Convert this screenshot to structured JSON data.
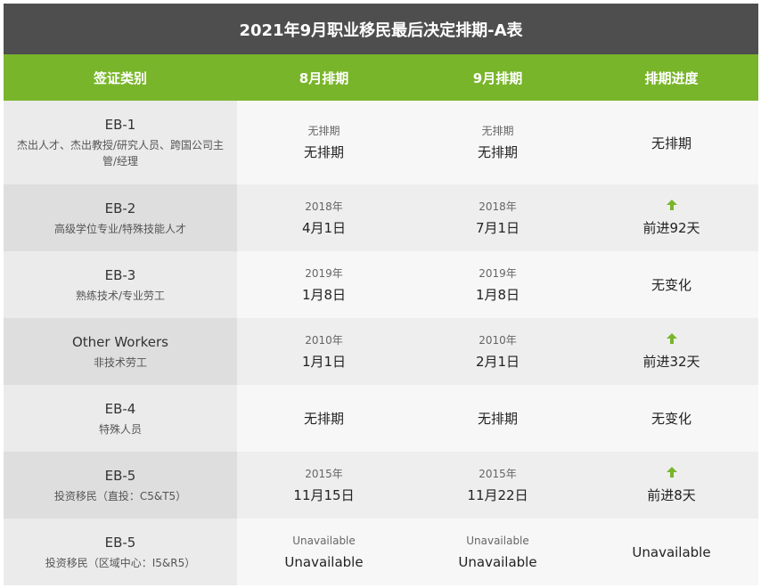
{
  "title": "2021年9月职业移民最后决定排期-A表",
  "headers": [
    "签证类别",
    "8月排期",
    "9月排期",
    "排期进度"
  ],
  "colors": {
    "title_bg": "#4e4e4e",
    "header_bg": "#79b52a",
    "arrow": "#79b52a"
  },
  "rows": [
    {
      "code": "EB-1",
      "desc": "杰出人才、杰出教授/研究人员、跨国公司主管/经理",
      "aug_small": "无排期",
      "aug_big": "无排期",
      "sep_small": "无排期",
      "sep_big": "无排期",
      "progress": "无排期",
      "arrow": ""
    },
    {
      "code": "EB-2",
      "desc": "高级学位专业/特殊技能人才",
      "aug_small": "2018年",
      "aug_big": "4月1日",
      "sep_small": "2018年",
      "sep_big": "7月1日",
      "progress": "前进92天",
      "arrow": "up-arrow-icon"
    },
    {
      "code": "EB-3",
      "desc": "熟练技术/专业劳工",
      "aug_small": "2019年",
      "aug_big": "1月8日",
      "sep_small": "2019年",
      "sep_big": "1月8日",
      "progress": "无变化",
      "arrow": ""
    },
    {
      "code": "Other Workers",
      "desc": "非技术劳工",
      "aug_small": "2010年",
      "aug_big": "1月1日",
      "sep_small": "2010年",
      "sep_big": "2月1日",
      "progress": "前进32天",
      "arrow": "up-arrow-icon"
    },
    {
      "code": "EB-4",
      "desc": "特殊人员",
      "aug_small": "",
      "aug_big": "无排期",
      "sep_small": "",
      "sep_big": "无排期",
      "progress": "无变化",
      "arrow": ""
    },
    {
      "code": "EB-5",
      "desc": "投资移民（直投：C5&T5）",
      "aug_small": "2015年",
      "aug_big": "11月15日",
      "sep_small": "2015年",
      "sep_big": "11月22日",
      "progress": "前进8天",
      "arrow": "up-arrow-icon"
    },
    {
      "code": "EB-5",
      "desc": "投资移民（区域中心：I5&R5）",
      "aug_small": "Unavailable",
      "aug_big": "Unavailable",
      "sep_small": "Unavailable",
      "sep_big": "Unavailable",
      "progress": "Unavailable",
      "arrow": ""
    }
  ]
}
